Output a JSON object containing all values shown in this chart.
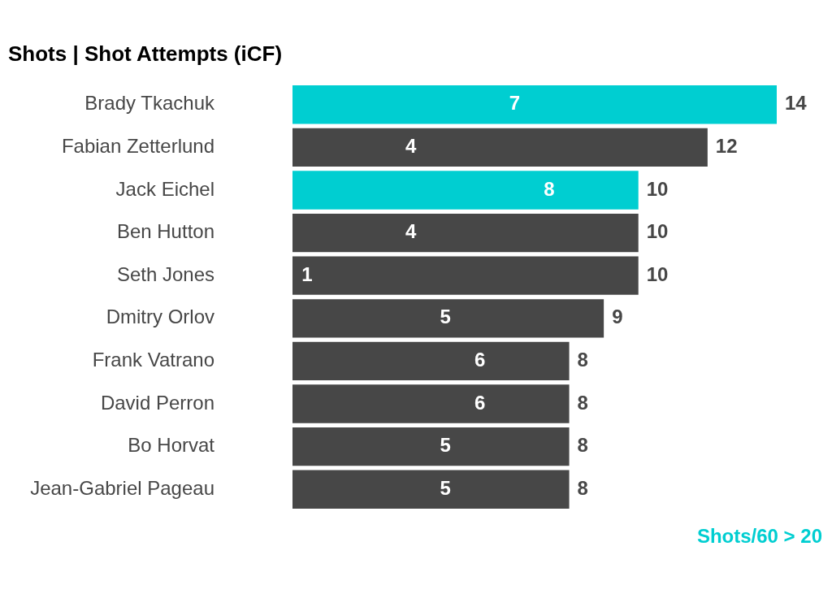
{
  "chart_data": {
    "type": "bar",
    "orientation": "horizontal",
    "stacked": true,
    "title": "Shots | Shot Attempts (iCF)",
    "categories": [
      "Brady Tkachuk",
      "Fabian Zetterlund",
      "Jack Eichel",
      "Ben Hutton",
      "Seth Jones",
      "Dmitry Orlov",
      "Frank Vatrano",
      "David Perron",
      "Bo Horvat",
      "Jean-Gabriel Pageau"
    ],
    "series": [
      {
        "name": "Shots/60 > 20",
        "color": "#00ced1",
        "values": [
          14,
          null,
          10,
          null,
          null,
          null,
          null,
          null,
          null,
          null
        ]
      },
      {
        "color": "#474747",
        "values": [
          null,
          12,
          null,
          10,
          10,
          9,
          8,
          8,
          8,
          8
        ]
      }
    ],
    "tick_labels": "y",
    "data_labels": true,
    "legend": "bottom right",
    "annotations": [
      {
        "text": "7",
        "x": 7,
        "y": "Brady Tkachuk"
      },
      {
        "text": "4",
        "x": 4,
        "y": "Fabian Zetterlund"
      },
      {
        "text": "8",
        "x": 8,
        "y": "Jack Eichel"
      },
      {
        "text": "4",
        "x": 4,
        "y": "Ben Hutton"
      },
      {
        "text": "1",
        "x": 1,
        "y": "Seth Jones"
      },
      {
        "text": "5",
        "x": 5,
        "y": "Dmitry Orlov"
      },
      {
        "text": "6",
        "x": 6,
        "y": "Frank Vatrano"
      },
      {
        "text": "6",
        "x": 6,
        "y": "David Perron"
      },
      {
        "text": "5",
        "x": 5,
        "y": "Bo Horvat"
      },
      {
        "text": "5",
        "x": 5,
        "y": "Jean-Gabriel Pageau"
      }
    ]
  }
}
